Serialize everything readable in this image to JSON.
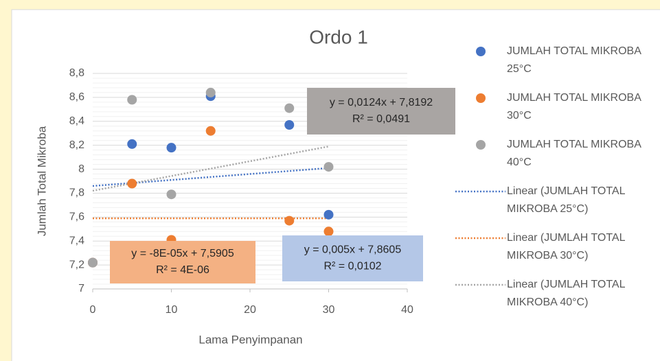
{
  "chart_data": {
    "type": "scatter",
    "title": "Ordo 1",
    "x_label": "Lama Penyimpanan",
    "y_label": "Jumlah Total Mikroba",
    "xlim": [
      0,
      40
    ],
    "xticks": [
      0,
      10,
      20,
      30,
      40
    ],
    "ylim": [
      7,
      8.8
    ],
    "yticks": [
      7,
      {
        "value": 7.2,
        "label": "7,2"
      },
      {
        "value": 7.4,
        "label": "7,4"
      },
      {
        "value": 7.6,
        "label": "7,6"
      },
      {
        "value": 7.8,
        "label": "7,8"
      },
      8,
      {
        "value": 8.2,
        "label": "8,2"
      },
      {
        "value": 8.4,
        "label": "8,4"
      },
      {
        "value": 8.6,
        "label": "8,6"
      },
      {
        "value": 8.8,
        "label": "8,8"
      }
    ],
    "grid": true,
    "series": [
      {
        "name": "JUMLAH TOTAL MIKROBA  25°C",
        "color": "#4472c4",
        "x": [
          0,
          5,
          10,
          15,
          25,
          30
        ],
        "values": [
          7.22,
          8.21,
          8.18,
          8.61,
          8.37,
          7.62
        ]
      },
      {
        "name": "JUMLAH TOTAL MIKROBA  30°C",
        "color": "#ed7d31",
        "x": [
          0,
          5,
          10,
          15,
          25,
          30
        ],
        "values": [
          7.22,
          7.88,
          7.41,
          8.32,
          7.57,
          7.48
        ]
      },
      {
        "name": "JUMLAH TOTAL MIKROBA  40°C",
        "color": "#a5a5a5",
        "x": [
          0,
          5,
          10,
          15,
          25,
          30
        ],
        "values": [
          7.22,
          8.58,
          7.79,
          8.64,
          8.51,
          8.02
        ]
      }
    ],
    "trendlines": [
      {
        "name": "Linear (JUMLAH TOTAL MIKROBA  25°C)",
        "color": "#4472c4",
        "x": [
          0,
          30
        ],
        "values": [
          7.86,
          8.01
        ]
      },
      {
        "name": "Linear (JUMLAH TOTAL MIKROBA  30°C)",
        "color": "#ed7d31",
        "x": [
          0,
          30
        ],
        "values": [
          7.59,
          7.59
        ]
      },
      {
        "name": "Linear (JUMLAH TOTAL MIKROBA  40°C)",
        "color": "#a5a5a5",
        "x": [
          0,
          30
        ],
        "values": [
          7.82,
          8.19
        ]
      }
    ],
    "annotations": [
      {
        "lines": [
          "y = 0,0124x + 7,8192",
          "R² = 0,0491"
        ],
        "color": "#a9a5a3"
      },
      {
        "lines": [
          "y = -8E-05x + 7,5905",
          "R² = 4E-06"
        ],
        "color": "#f4b183"
      },
      {
        "lines": [
          "y = 0,005x + 7,8605",
          "R² = 0,0102"
        ],
        "color": "#b4c7e7"
      }
    ]
  }
}
